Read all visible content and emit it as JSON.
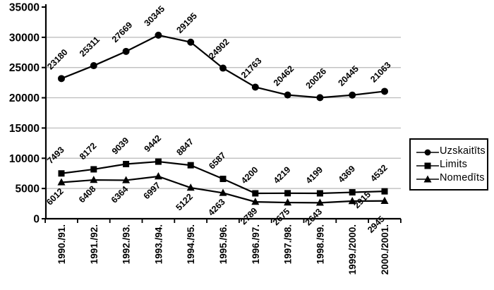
{
  "chart_data": {
    "type": "line",
    "title": "",
    "xlabel": "",
    "ylabel": "",
    "ylim": [
      0,
      35000
    ],
    "ytick_interval": 5000,
    "yticks": [
      "0",
      "5000",
      "10000",
      "15000",
      "20000",
      "25000",
      "30000",
      "35000"
    ],
    "categories": [
      "1990./91.",
      "1991./92.",
      "1992./93.",
      "1993./94.",
      "1994./95.",
      "1995./96.",
      "1996./97.",
      "1997./98.",
      "1998./99.",
      "1999./2000.",
      "2000./2001."
    ],
    "series": [
      {
        "name": "Uzskaitīts",
        "marker": "circle",
        "color": "#000000",
        "values": [
          23180,
          25311,
          27669,
          30345,
          29195,
          24902,
          21763,
          20462,
          20026,
          20445,
          21063
        ]
      },
      {
        "name": "Limits",
        "marker": "square",
        "color": "#000000",
        "values": [
          7493,
          8172,
          9039,
          9442,
          8847,
          6587,
          4200,
          4219,
          4199,
          4369,
          4532
        ]
      },
      {
        "name": "Nomedīts",
        "marker": "triangle",
        "color": "#000000",
        "values": [
          6012,
          6408,
          6364,
          6997,
          5122,
          4263,
          2789,
          2675,
          2643,
          2915,
          2945
        ]
      }
    ],
    "data_labels_visible": true,
    "grid": true,
    "legend_position": "right",
    "colors": {
      "line": "#000000",
      "grid": "#b8b8b8",
      "background": "#ffffff",
      "text": "#000000"
    }
  }
}
